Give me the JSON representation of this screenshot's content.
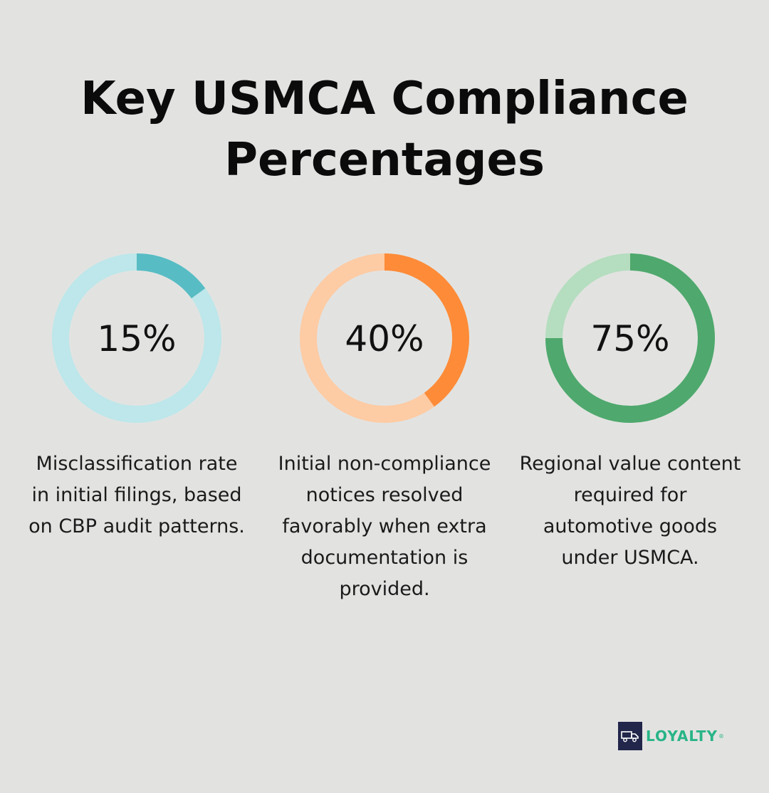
{
  "title_line1": "Key USMCA Compliance",
  "title_line2": "Percentages",
  "chart_data": [
    {
      "type": "pie",
      "value": 15,
      "label": "15%",
      "description": "Misclassification rate in initial filings, based on CBP audit patterns.",
      "colors": {
        "fill": "#58bcc4",
        "track": "#bde7ea"
      }
    },
    {
      "type": "pie",
      "value": 40,
      "label": "40%",
      "description": "Initial non-compliance notices resolved favorably when extra documentation is provided.",
      "colors": {
        "fill": "#fd8b38",
        "track": "#fdcba4"
      }
    },
    {
      "type": "pie",
      "value": 75,
      "label": "75%",
      "description": "Regional value content required for automotive goods under USMCA.",
      "colors": {
        "fill": "#4fa86d",
        "track": "#b5ddbf"
      }
    }
  ],
  "brand": {
    "name": "LOYALTY",
    "reg": "®",
    "icon": "truck-icon",
    "colors": {
      "badge": "#22264a",
      "text": "#28b487"
    }
  }
}
